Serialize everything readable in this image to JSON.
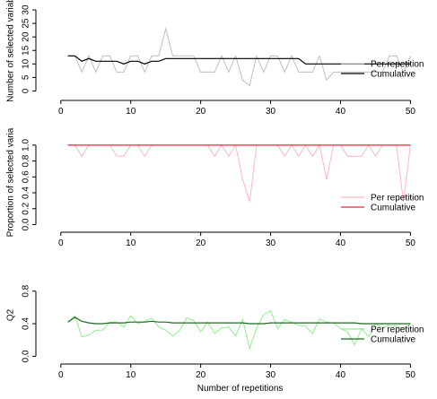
{
  "chart_data": [
    {
      "type": "line",
      "ylabel": "Number of selected variab",
      "xlabel": "",
      "xlim": [
        -1,
        52
      ],
      "ylim": [
        -1.5,
        32
      ],
      "xticks": [
        0,
        10,
        20,
        30,
        40,
        50
      ],
      "yticks": [
        0,
        5,
        10,
        15,
        20,
        25,
        30
      ],
      "legend_position": "bottom-right",
      "series": [
        {
          "name": "Per repetition",
          "color": "#bebebe",
          "x": [
            1,
            2,
            3,
            4,
            5,
            6,
            7,
            8,
            9,
            10,
            11,
            12,
            13,
            14,
            15,
            16,
            17,
            18,
            19,
            20,
            21,
            22,
            23,
            24,
            25,
            26,
            27,
            28,
            29,
            30,
            31,
            32,
            33,
            34,
            35,
            36,
            37,
            38,
            39,
            40,
            41,
            42,
            43,
            44,
            45,
            46,
            47,
            48,
            49,
            50
          ],
          "y": [
            13,
            13,
            7,
            13,
            7,
            13,
            13,
            7,
            7,
            13,
            13,
            7,
            13,
            13,
            23,
            13,
            13,
            13,
            13,
            7,
            7,
            7,
            13,
            7,
            13,
            4,
            2,
            13,
            7,
            13,
            13,
            7,
            13,
            7,
            7,
            7,
            13,
            4,
            7,
            7,
            7,
            7,
            7,
            7,
            7,
            7,
            13,
            13,
            7,
            13
          ]
        },
        {
          "name": "Cumulative",
          "color": "#000000",
          "x": [
            1,
            2,
            3,
            4,
            5,
            6,
            7,
            8,
            9,
            10,
            11,
            12,
            13,
            14,
            15,
            16,
            17,
            18,
            19,
            20,
            21,
            22,
            23,
            24,
            25,
            26,
            27,
            28,
            29,
            30,
            31,
            32,
            33,
            34,
            35,
            36,
            37,
            38,
            39,
            40,
            41,
            42,
            43,
            44,
            45,
            46,
            47,
            48,
            49,
            50
          ],
          "y": [
            13,
            13,
            11,
            12,
            11,
            11,
            11,
            11,
            10,
            11,
            11,
            10,
            11,
            11,
            12,
            12,
            12,
            12,
            12,
            12,
            12,
            12,
            12,
            12,
            12,
            12,
            12,
            12,
            12,
            12,
            12,
            12,
            12,
            12,
            10,
            10,
            10,
            10,
            10,
            10,
            10,
            10,
            10,
            10,
            10,
            10,
            10,
            10,
            10,
            10
          ]
        }
      ]
    },
    {
      "type": "line",
      "ylabel": "Proportion of selected varia",
      "xlabel": "",
      "xlim": [
        -1,
        52
      ],
      "ylim": [
        -0.04,
        1.1
      ],
      "xticks": [
        0,
        10,
        20,
        30,
        40,
        50
      ],
      "yticks": [
        0.0,
        0.2,
        0.4,
        0.6,
        0.8,
        1.0
      ],
      "legend_position": "bottom-right",
      "series": [
        {
          "name": "Per repetition",
          "color": "#ffb6c1",
          "x": [
            1,
            2,
            3,
            4,
            5,
            6,
            7,
            8,
            9,
            10,
            11,
            12,
            13,
            14,
            15,
            16,
            17,
            18,
            19,
            20,
            21,
            22,
            23,
            24,
            25,
            26,
            27,
            28,
            29,
            30,
            31,
            32,
            33,
            34,
            35,
            36,
            37,
            38,
            39,
            40,
            41,
            42,
            43,
            44,
            45,
            46,
            47,
            48,
            49,
            50
          ],
          "y": [
            1,
            1,
            0.86,
            1,
            1,
            1,
            1,
            0.86,
            0.86,
            1,
            1,
            0.86,
            1,
            1,
            1,
            1,
            1,
            1,
            1,
            1,
            1,
            0.86,
            1,
            0.86,
            1,
            0.57,
            0.29,
            1,
            1,
            1,
            1,
            0.86,
            1,
            0.86,
            1,
            0.86,
            1,
            0.57,
            1,
            1,
            0.86,
            0.86,
            0.86,
            1,
            0.86,
            1,
            1,
            1,
            0.29,
            1
          ]
        },
        {
          "name": "Cumulative",
          "color": "#e8253c",
          "x": [
            1,
            50
          ],
          "y": [
            1,
            1
          ]
        }
      ]
    },
    {
      "type": "line",
      "ylabel": "Q2",
      "xlabel": "Number of repetitions",
      "xlim": [
        -1,
        52
      ],
      "ylim": [
        -0.04,
        1.05
      ],
      "xticks": [
        0,
        10,
        20,
        30,
        40,
        50
      ],
      "yticks": [
        0.0,
        0.4,
        0.8
      ],
      "legend_position": "bottom-right",
      "series": [
        {
          "name": "Per repetition",
          "color": "#90ee90",
          "x": [
            1,
            2,
            3,
            4,
            5,
            6,
            7,
            8,
            9,
            10,
            11,
            12,
            13,
            14,
            15,
            16,
            17,
            18,
            19,
            20,
            21,
            22,
            23,
            24,
            25,
            26,
            27,
            28,
            29,
            30,
            31,
            32,
            33,
            34,
            35,
            36,
            37,
            38,
            39,
            40,
            41,
            42,
            43,
            44,
            45,
            46,
            47,
            48,
            49,
            50
          ],
          "y": [
            0.42,
            0.5,
            0.24,
            0.26,
            0.32,
            0.32,
            0.42,
            0.42,
            0.36,
            0.5,
            0.4,
            0.43,
            0.47,
            0.36,
            0.32,
            0.25,
            0.32,
            0.47,
            0.44,
            0.3,
            0.42,
            0.28,
            0.35,
            0.36,
            0.25,
            0.45,
            0.1,
            0.35,
            0.51,
            0.56,
            0.34,
            0.45,
            0.42,
            0.38,
            0.37,
            0.28,
            0.46,
            0.42,
            0.41,
            0.34,
            0.3,
            0.14,
            0.34,
            0.24,
            0.4,
            0.35,
            0.38,
            0.37,
            0.33,
            0.4
          ]
        },
        {
          "name": "Cumulative",
          "color": "#1f6b1f",
          "x": [
            1,
            2,
            3,
            4,
            5,
            6,
            7,
            8,
            9,
            10,
            11,
            12,
            13,
            14,
            15,
            16,
            17,
            18,
            19,
            20,
            21,
            22,
            23,
            24,
            25,
            26,
            27,
            28,
            29,
            30,
            31,
            32,
            33,
            34,
            35,
            36,
            37,
            38,
            39,
            40,
            41,
            42,
            43,
            44,
            45,
            46,
            47,
            48,
            49,
            50
          ],
          "y": [
            0.42,
            0.48,
            0.43,
            0.41,
            0.4,
            0.4,
            0.41,
            0.41,
            0.41,
            0.42,
            0.42,
            0.42,
            0.43,
            0.42,
            0.42,
            0.41,
            0.41,
            0.41,
            0.41,
            0.41,
            0.41,
            0.41,
            0.41,
            0.41,
            0.41,
            0.41,
            0.4,
            0.4,
            0.4,
            0.41,
            0.41,
            0.41,
            0.41,
            0.41,
            0.41,
            0.41,
            0.41,
            0.41,
            0.41,
            0.41,
            0.41,
            0.41,
            0.4,
            0.4,
            0.4,
            0.4,
            0.4,
            0.4,
            0.4,
            0.4
          ]
        }
      ]
    }
  ]
}
